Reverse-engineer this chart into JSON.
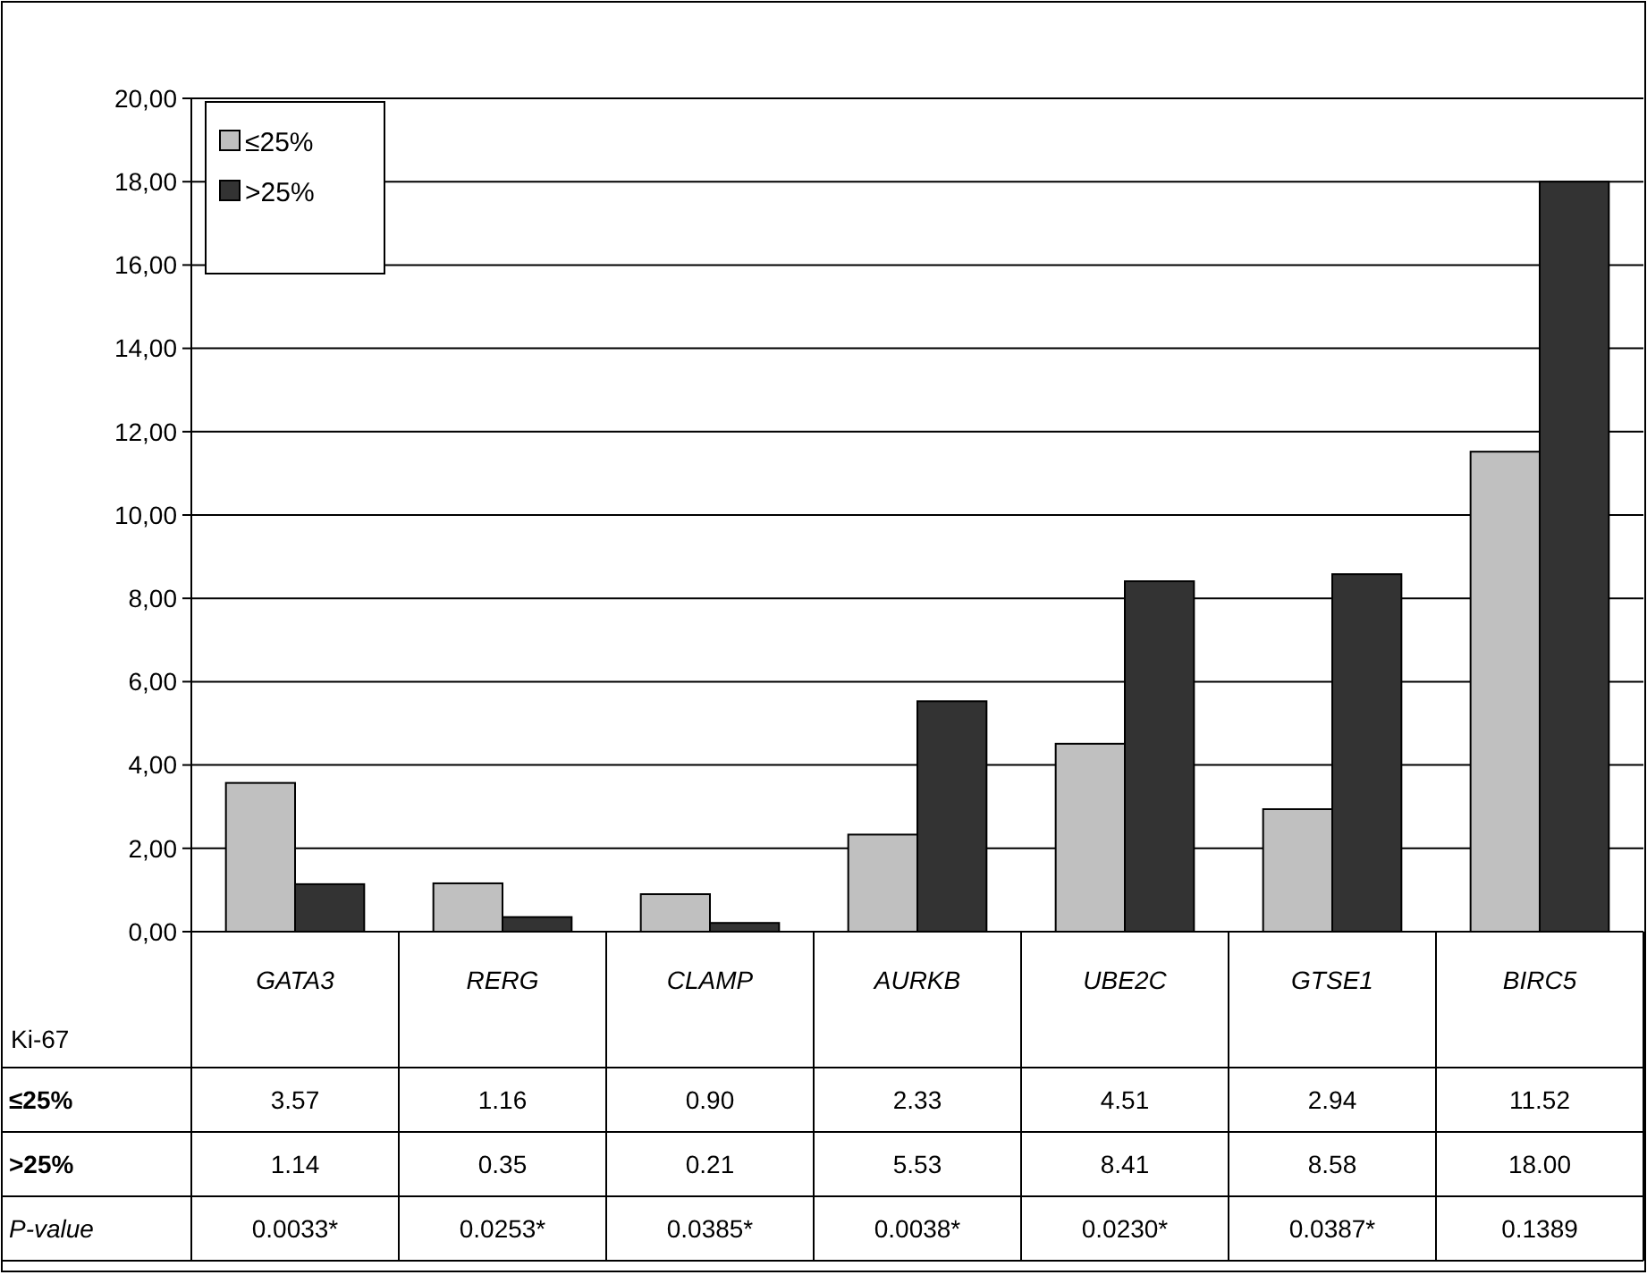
{
  "chart_data": {
    "type": "bar",
    "categories": [
      "GATA3",
      "RERG",
      "CLAMP",
      "AURKB",
      "UBE2C",
      "GTSE1",
      "BIRC5"
    ],
    "series": [
      {
        "name": "≤25%",
        "color": "#c0c0c0",
        "values": [
          3.57,
          1.16,
          0.9,
          2.33,
          4.51,
          2.94,
          11.52
        ],
        "value_labels": [
          "3.57",
          "1.16",
          "0.90",
          "2.33",
          "4.51",
          "2.94",
          "11.52"
        ]
      },
      {
        "name": ">25%",
        "color": "#333333",
        "values": [
          1.14,
          0.35,
          0.21,
          5.53,
          8.41,
          8.58,
          18.0
        ],
        "value_labels": [
          "1.14",
          "0.35",
          "0.21",
          "5.53",
          "8.41",
          "8.58",
          "18.00"
        ]
      }
    ],
    "ylim": [
      0,
      20
    ],
    "yticks": [
      {
        "value": 0,
        "label": "0,00"
      },
      {
        "value": 2,
        "label": "2,00"
      },
      {
        "value": 4,
        "label": "4,00"
      },
      {
        "value": 6,
        "label": "6,00"
      },
      {
        "value": 8,
        "label": "8,00"
      },
      {
        "value": 10,
        "label": "10,00"
      },
      {
        "value": 12,
        "label": "12,00"
      },
      {
        "value": 14,
        "label": "14,00"
      },
      {
        "value": 16,
        "label": "16,00"
      },
      {
        "value": 18,
        "label": "18,00"
      },
      {
        "value": 20,
        "label": "20,00"
      }
    ],
    "grid": "y",
    "legend": "top left",
    "legend_title": "Ki-67",
    "annotations": [
      "P-value",
      "0.0033*",
      "0.0253*",
      "0.0385*",
      "0.0038*",
      "0.0230*",
      "0.0387*",
      "0.1389"
    ]
  }
}
